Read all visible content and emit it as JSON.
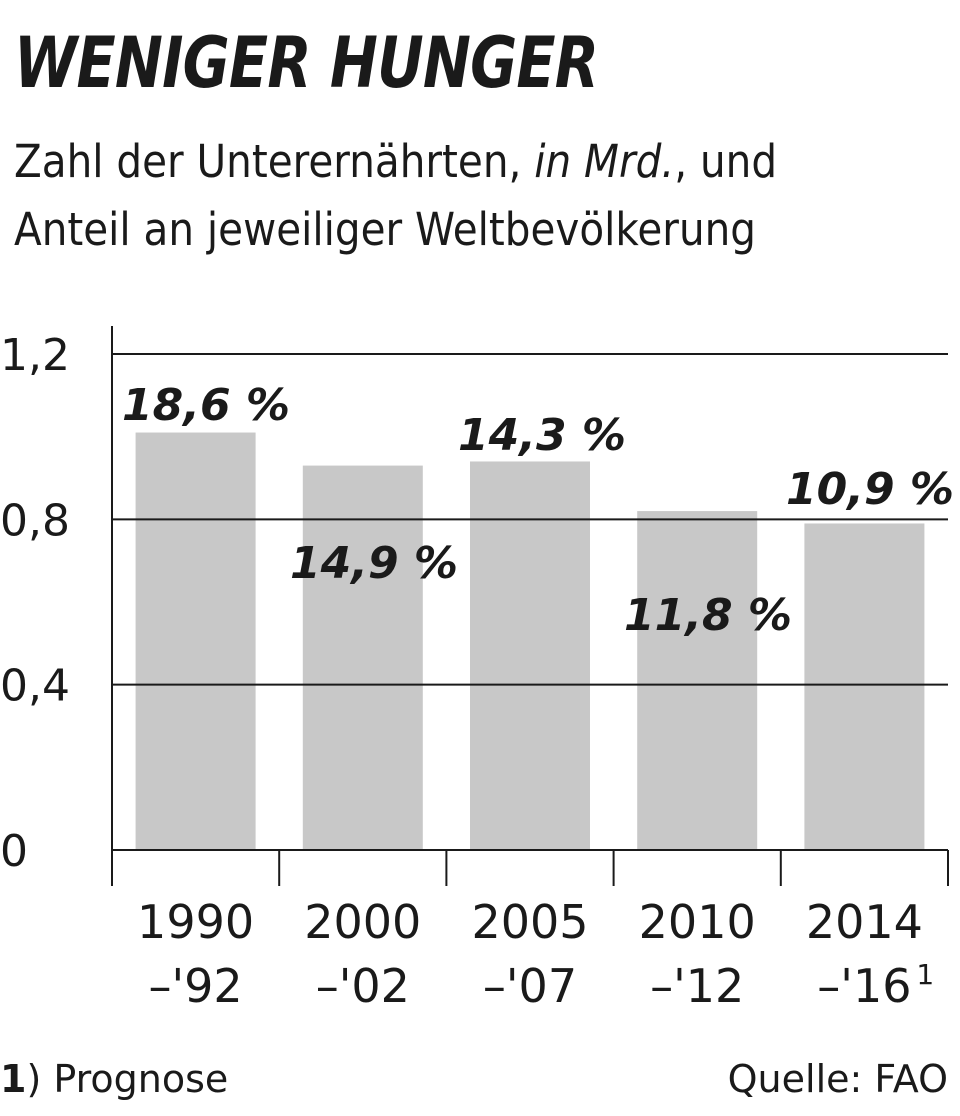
{
  "header": {
    "title": "WENIGER HUNGER",
    "subtitle_line1_prefix": "Zahl der Unterernährten, ",
    "subtitle_line1_italic": "in Mrd.",
    "subtitle_line1_suffix": ", und",
    "subtitle_line2": "Anteil an jeweiliger Weltbevölkerung"
  },
  "footer": {
    "footnote_marker": "1",
    "footnote_text": ") Prognose",
    "source": "Quelle: FAO"
  },
  "colors": {
    "bar": "#c8c8c8",
    "axis": "#1a1a1a",
    "grid": "#1a1a1a",
    "text": "#1a1a1a"
  },
  "chart_data": {
    "type": "bar",
    "title": "WENIGER HUNGER",
    "ylim": [
      0,
      1.2
    ],
    "yticks": [
      "0",
      "0,4",
      "0,8",
      "1,2"
    ],
    "ytick_values": [
      0,
      0.4,
      0.8,
      1.2
    ],
    "grid": true,
    "categories": [
      {
        "line1": "1990",
        "line2": "–'92",
        "sup": ""
      },
      {
        "line1": "2000",
        "line2": "–'02",
        "sup": ""
      },
      {
        "line1": "2005",
        "line2": "–'07",
        "sup": ""
      },
      {
        "line1": "2010",
        "line2": "–'12",
        "sup": ""
      },
      {
        "line1": "2014",
        "line2": "–'16",
        "sup": "1"
      }
    ],
    "series": [
      {
        "values": [
          1.01,
          0.93,
          0.94,
          0.82,
          0.79
        ],
        "labels": [
          "18,6 %",
          "14,9 %",
          "14,3 %",
          "11,8 %",
          "10,9 %"
        ]
      }
    ]
  }
}
